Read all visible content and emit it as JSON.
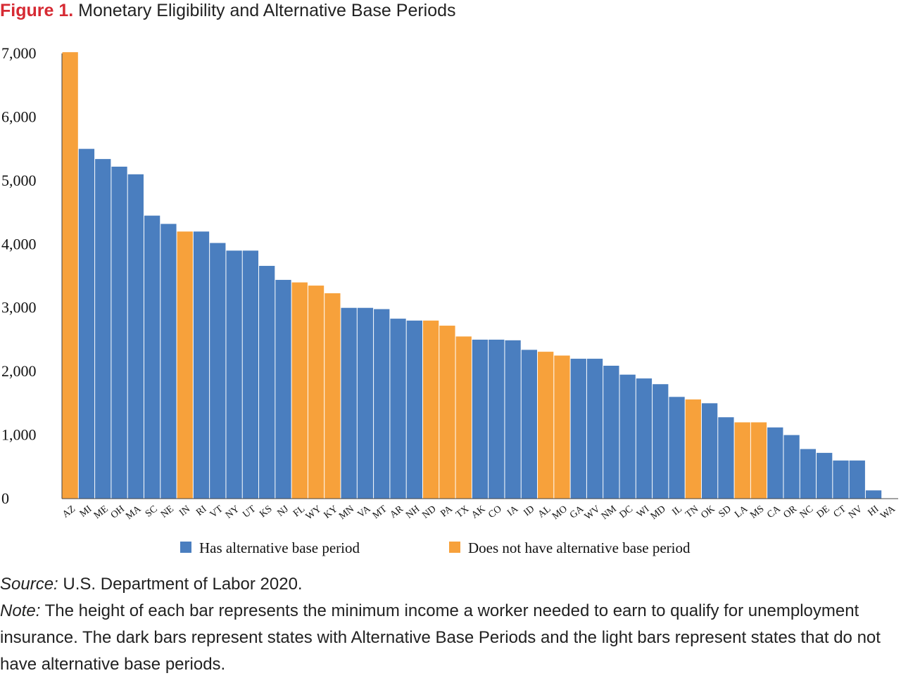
{
  "figure": {
    "label": "Figure 1.",
    "title": "Monetary Eligibility and Alternative Base Periods"
  },
  "colors": {
    "has_abp": "#4a7ebf",
    "no_abp": "#f7a13b",
    "figure_label": "#d62a33"
  },
  "chart_data": {
    "type": "bar",
    "categories": [
      "AZ",
      "MI",
      "ME",
      "OH",
      "MA",
      "SC",
      "NE",
      "IN",
      "RI",
      "VT",
      "NY",
      "UT",
      "KS",
      "NJ",
      "FL",
      "WY",
      "KY",
      "MN",
      "VA",
      "MT",
      "AR",
      "NH",
      "ND",
      "PA",
      "TX",
      "AK",
      "CO",
      "IA",
      "ID",
      "AL",
      "MO",
      "GA",
      "WV",
      "NM",
      "DC",
      "WI",
      "MD",
      "IL",
      "TN",
      "OK",
      "SD",
      "LA",
      "MS",
      "CA",
      "OR",
      "NC",
      "DE",
      "CT",
      "NV",
      "HI",
      "WA"
    ],
    "values": [
      7020,
      5500,
      5340,
      5220,
      5100,
      4450,
      4320,
      4200,
      4200,
      4020,
      3900,
      3900,
      3660,
      3440,
      3400,
      3350,
      3230,
      3000,
      3000,
      2980,
      2830,
      2800,
      2800,
      2720,
      2550,
      2500,
      2500,
      2490,
      2340,
      2310,
      2250,
      2200,
      2200,
      2090,
      1950,
      1890,
      1800,
      1600,
      1560,
      1500,
      1280,
      1200,
      1200,
      1120,
      1000,
      780,
      720,
      600,
      600,
      130,
      0
    ],
    "has_alternative_base_period": [
      false,
      true,
      true,
      true,
      true,
      true,
      true,
      false,
      true,
      true,
      true,
      true,
      true,
      true,
      false,
      false,
      false,
      true,
      true,
      true,
      true,
      true,
      false,
      false,
      false,
      true,
      true,
      true,
      true,
      false,
      false,
      true,
      true,
      true,
      true,
      true,
      true,
      true,
      false,
      true,
      true,
      false,
      false,
      true,
      true,
      true,
      true,
      true,
      true,
      true,
      true
    ],
    "yticks": [
      "0",
      "1,000",
      "2,000",
      "3,000",
      "4,000",
      "5,000",
      "6,000",
      "7,000"
    ],
    "ylim": [
      0,
      7000
    ],
    "legend": [
      {
        "label": "Has alternative base period",
        "color": "#4a7ebf"
      },
      {
        "label": "Does not have alternative base period",
        "color": "#f7a13b"
      }
    ],
    "legend_position": "bottom-center",
    "grid": false
  },
  "notes": {
    "source_label": "Source:",
    "source_text": " U.S. Department of Labor 2020.",
    "note_label": "Note:",
    "note_text": " The height of each bar represents the minimum income a worker needed to earn to qualify for unemployment insurance. The dark bars represent states with Alternative Base Periods and the light bars represent states that do not have alternative base periods."
  }
}
